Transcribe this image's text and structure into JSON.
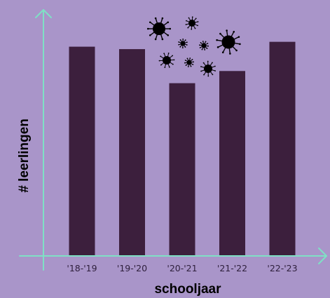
{
  "chart_data": {
    "type": "bar",
    "categories": [
      "'18-'19",
      "'19-'20",
      "'20-'21",
      "'21-'22",
      "'22-'23"
    ],
    "values": [
      86,
      85,
      71,
      76,
      88
    ],
    "title": "",
    "xlabel": "schooljaar",
    "ylabel": "# leerlingen",
    "ylim": [
      0,
      100
    ],
    "y_ticks_shown": false,
    "grid": false,
    "legend": "none",
    "decoration": "virus-icons",
    "colors": {
      "background": "#a995c9",
      "bar": "#3c1f3d",
      "axis": "#7fe0c5",
      "virus": "#000000"
    }
  }
}
